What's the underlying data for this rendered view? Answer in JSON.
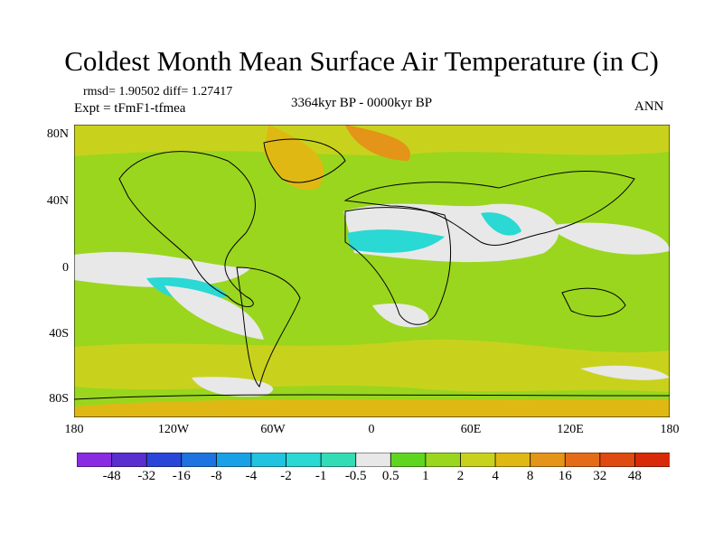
{
  "title": "Coldest Month Mean Surface Air Temperature (in C)",
  "stats": "rmsd= 1.90502 diff= 1.27417",
  "experiment": "Expt = tFmF1-tfmea",
  "period": "3364kyr BP - 0000kyr BP",
  "season": "ANN",
  "y_ticks": [
    "80N",
    "40N",
    "0",
    "40S",
    "80S"
  ],
  "x_ticks": [
    "180",
    "120W",
    "60W",
    "0",
    "60E",
    "120E",
    "180"
  ],
  "colorbar": {
    "labels": [
      "-48",
      "-32",
      "-16",
      "-8",
      "-4",
      "-2",
      "-1",
      "-0.5",
      "0.5",
      "1",
      "2",
      "4",
      "8",
      "16",
      "32",
      "48"
    ],
    "colors": [
      "#8a2be2",
      "#5a2ecf",
      "#2a46d8",
      "#1f73e0",
      "#1aa0e6",
      "#22c3e0",
      "#2ad8d4",
      "#33dcb4",
      "#e8e8e8",
      "#5ed620",
      "#9ad61e",
      "#c8d21c",
      "#e0b814",
      "#e49418",
      "#e46c18",
      "#de4a10",
      "#d82a08"
    ]
  }
}
